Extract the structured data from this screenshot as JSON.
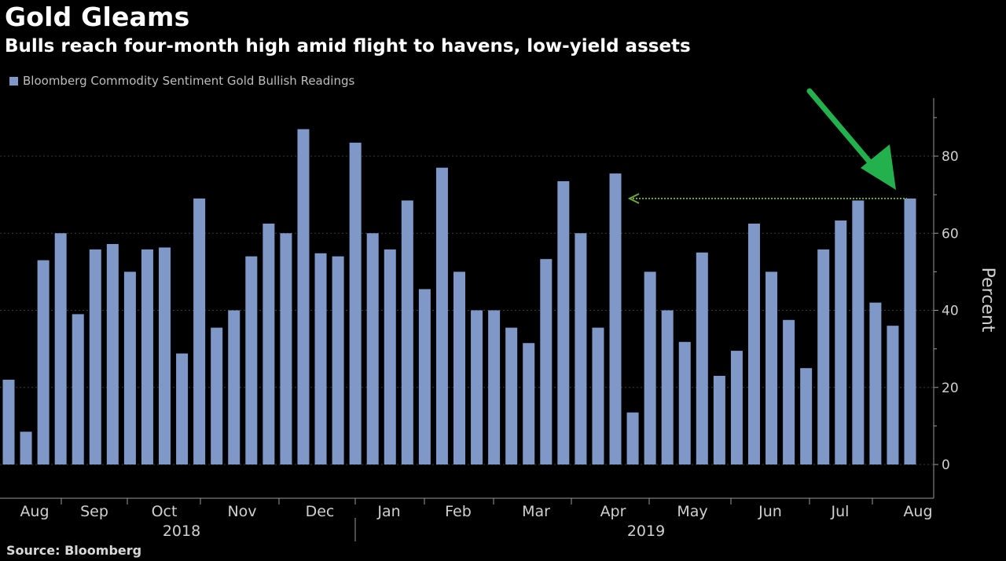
{
  "title": "Gold Gleams",
  "subtitle": "Bulls reach four-month high amid flight to havens, low-yield assets",
  "source": "Source: Bloomberg",
  "colors": {
    "background": "#000000",
    "bar": "#8098c8",
    "grid": "#3a3a3a",
    "arrow": "#22b14c",
    "reference_line": "#6fa83a"
  },
  "chart_data": {
    "type": "bar",
    "legend": [
      "Bloomberg Commodity Sentiment Gold Bullish Readings"
    ],
    "ylabel": "Percent",
    "ylim": [
      -8,
      95
    ],
    "yticks": [
      0,
      20,
      40,
      60,
      80
    ],
    "y_axis_side": "right",
    "grid": true,
    "series": [
      {
        "name": "Bloomberg Commodity Sentiment Gold Bullish Readings",
        "values": [
          22,
          8.5,
          53,
          60,
          39,
          55.8,
          57.2,
          50,
          55.8,
          56.3,
          28.8,
          69,
          35.5,
          40,
          54,
          62.5,
          60,
          87,
          54.8,
          54,
          83.5,
          60,
          55.8,
          68.5,
          45.5,
          77,
          50,
          40,
          40,
          35.5,
          31.5,
          53.3,
          73.5,
          60,
          35.5,
          75.5,
          13.5,
          50,
          40,
          31.8,
          55,
          23,
          29.5,
          62.5,
          50,
          37.5,
          25,
          55.8,
          63.3,
          68.5,
          42,
          36,
          69
        ]
      }
    ],
    "month_labels": [
      "Aug",
      "Sep",
      "Oct",
      "Nov",
      "Dec",
      "Jan",
      "Feb",
      "Mar",
      "Apr",
      "May",
      "Jun",
      "Jul",
      "Aug"
    ],
    "year_labels": [
      "2018",
      "2019"
    ],
    "annotations": [
      {
        "kind": "dotted-reference-line",
        "value": 69
      },
      {
        "kind": "arrow",
        "points_to": "latest reading"
      }
    ]
  }
}
